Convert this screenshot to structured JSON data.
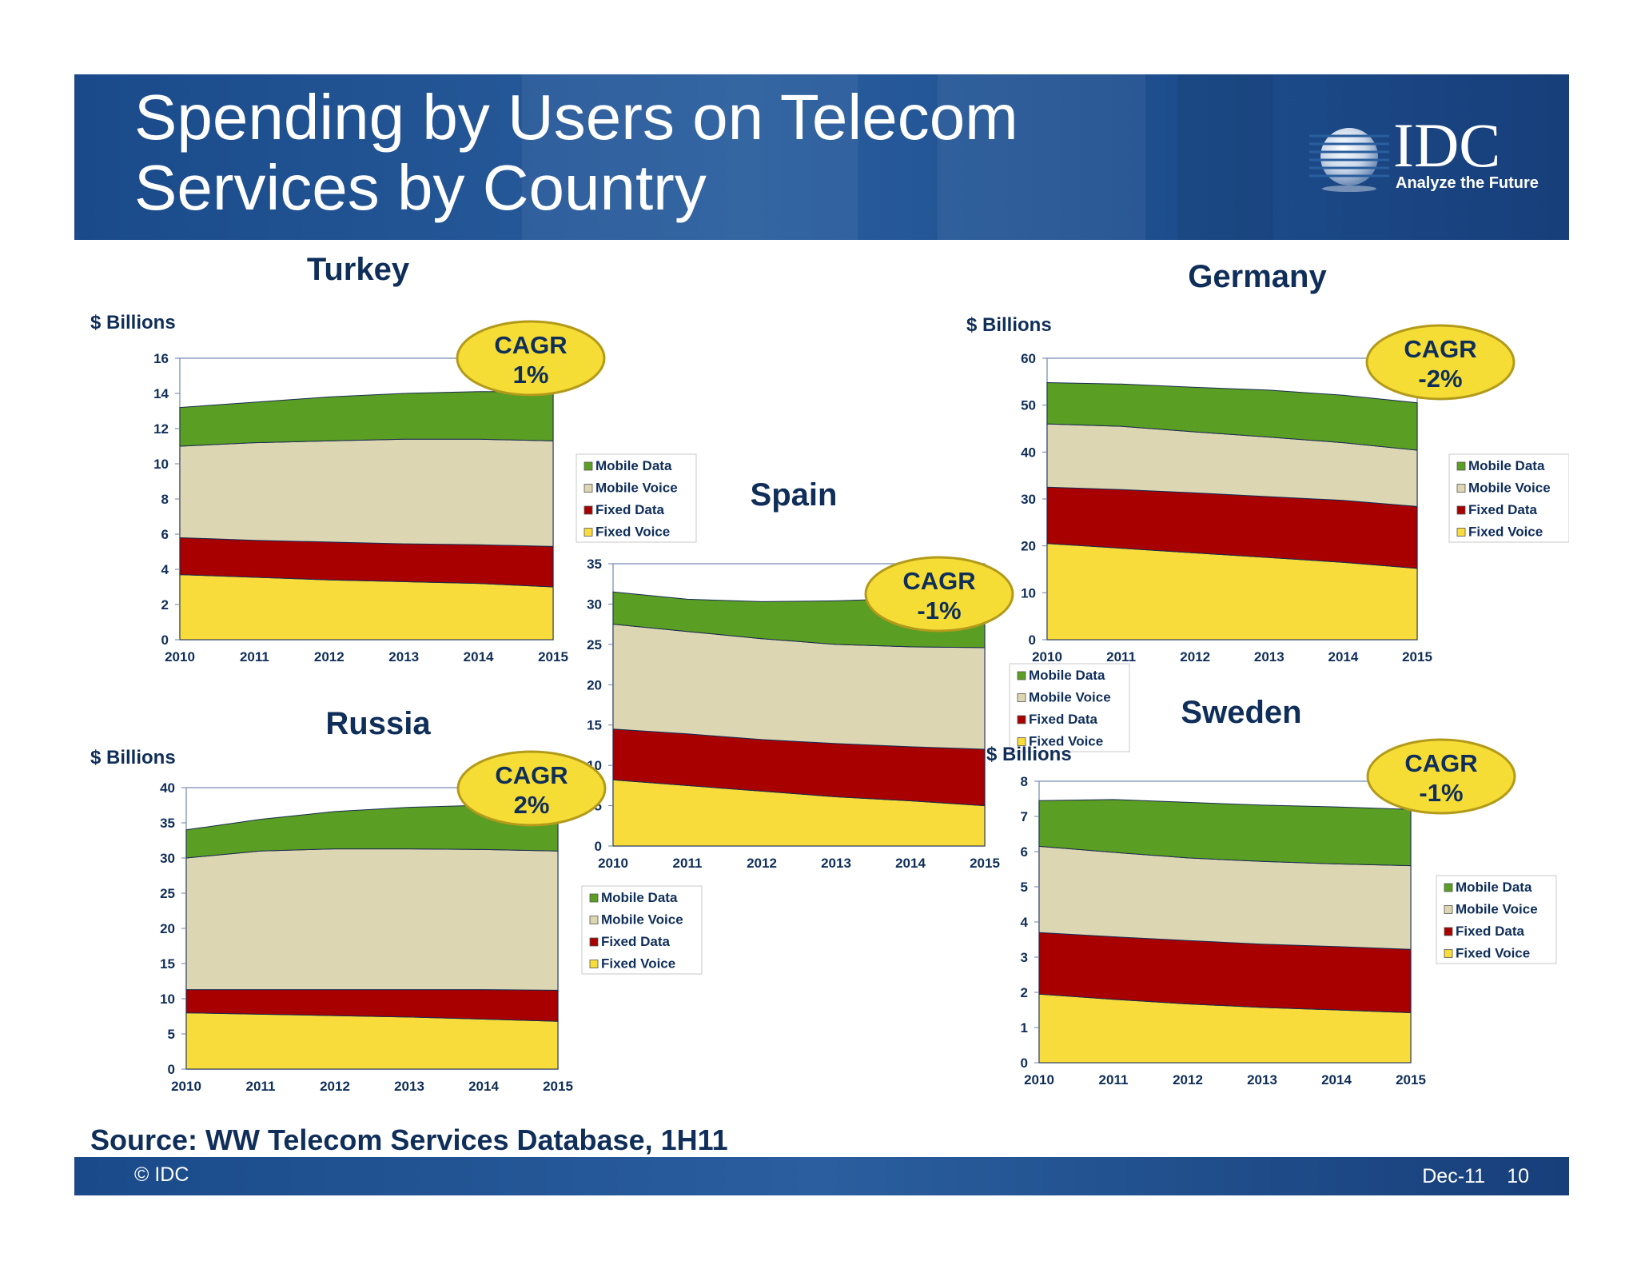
{
  "header": {
    "title_line1": "Spending by Users on Telecom",
    "title_line2": "Services by Country",
    "logo_text": "IDC",
    "logo_tagline": "Analyze the Future"
  },
  "source": "Source: WW Telecom Services Database, 1H11",
  "footer": {
    "copyright": "© IDC",
    "date": "Dec-11",
    "page": "10"
  },
  "colors": {
    "mobile_data": "#5a9e23",
    "mobile_voice": "#ddd6b2",
    "fixed_data": "#a80000",
    "fixed_voice": "#f8dc3b",
    "title_navy": "#0f2e5a",
    "cagr_badge": "#f5dd36"
  },
  "chart_data": [
    {
      "type": "area",
      "stacked": true,
      "title": "Turkey",
      "ylabel": "$ Billions",
      "cagr_label": "CAGR",
      "cagr_value": "1%",
      "x": [
        "2010",
        "2011",
        "2012",
        "2013",
        "2014",
        "2015"
      ],
      "ylim": [
        0,
        16
      ],
      "yticks": [
        "0",
        "2",
        "4",
        "6",
        "8",
        "10",
        "12",
        "14",
        "16"
      ],
      "series": [
        {
          "name": "Fixed Voice",
          "values": [
            3.7,
            3.55,
            3.4,
            3.3,
            3.2,
            3.0
          ]
        },
        {
          "name": "Fixed Data",
          "values": [
            2.1,
            2.1,
            2.15,
            2.15,
            2.2,
            2.3
          ]
        },
        {
          "name": "Mobile Voice",
          "values": [
            5.2,
            5.55,
            5.75,
            5.95,
            6.0,
            6.0
          ]
        },
        {
          "name": "Mobile Data",
          "values": [
            2.2,
            2.3,
            2.5,
            2.6,
            2.7,
            2.8
          ]
        }
      ],
      "legend": [
        "Mobile Data",
        "Mobile Voice",
        "Fixed Data",
        "Fixed Voice"
      ]
    },
    {
      "type": "area",
      "stacked": true,
      "title": "Germany",
      "ylabel": "$ Billions",
      "cagr_label": "CAGR",
      "cagr_value": "-2%",
      "x": [
        "2010",
        "2011",
        "2012",
        "2013",
        "2014",
        "2015"
      ],
      "ylim": [
        0,
        60
      ],
      "yticks": [
        "0",
        "10",
        "20",
        "30",
        "40",
        "50",
        "60"
      ],
      "series": [
        {
          "name": "Fixed Voice",
          "values": [
            20.5,
            19.5,
            18.5,
            17.5,
            16.5,
            15.2
          ]
        },
        {
          "name": "Fixed Data",
          "values": [
            12.0,
            12.5,
            12.8,
            13.0,
            13.2,
            13.2
          ]
        },
        {
          "name": "Mobile Voice",
          "values": [
            13.5,
            13.5,
            13.0,
            12.7,
            12.3,
            12.0
          ]
        },
        {
          "name": "Mobile Data",
          "values": [
            8.8,
            9.0,
            9.5,
            10.0,
            10.1,
            10.1
          ]
        }
      ],
      "legend": [
        "Mobile Data",
        "Mobile Voice",
        "Fixed Data",
        "Fixed Voice"
      ]
    },
    {
      "type": "area",
      "stacked": true,
      "title": "Spain",
      "ylabel": "",
      "cagr_label": "CAGR",
      "cagr_value": "-1%",
      "x": [
        "2010",
        "2011",
        "2012",
        "2013",
        "2014",
        "2015"
      ],
      "ylim": [
        0,
        35
      ],
      "yticks": [
        "0",
        "5",
        "10",
        "15",
        "20",
        "25",
        "30",
        "35"
      ],
      "series": [
        {
          "name": "Fixed Voice",
          "values": [
            8.2,
            7.5,
            6.8,
            6.1,
            5.6,
            5.0
          ]
        },
        {
          "name": "Fixed Data",
          "values": [
            6.3,
            6.4,
            6.4,
            6.6,
            6.7,
            7.0
          ]
        },
        {
          "name": "Mobile Voice",
          "values": [
            13.0,
            12.7,
            12.5,
            12.3,
            12.4,
            12.6
          ]
        },
        {
          "name": "Mobile Data",
          "values": [
            4.0,
            4.0,
            4.6,
            5.4,
            6.0,
            6.5
          ]
        }
      ],
      "legend": [
        "Mobile Data",
        "Mobile Voice",
        "Fixed Data",
        "Fixed Voice"
      ]
    },
    {
      "type": "area",
      "stacked": true,
      "title": "Russia",
      "ylabel": "$ Billions",
      "cagr_label": "CAGR",
      "cagr_value": "2%",
      "x": [
        "2010",
        "2011",
        "2012",
        "2013",
        "2014",
        "2015"
      ],
      "ylim": [
        0,
        40
      ],
      "yticks": [
        "0",
        "5",
        "10",
        "15",
        "20",
        "25",
        "30",
        "35",
        "40"
      ],
      "series": [
        {
          "name": "Fixed Voice",
          "values": [
            8.0,
            7.8,
            7.6,
            7.4,
            7.1,
            6.8
          ]
        },
        {
          "name": "Fixed Data",
          "values": [
            3.3,
            3.5,
            3.7,
            3.9,
            4.2,
            4.4
          ]
        },
        {
          "name": "Mobile Voice",
          "values": [
            18.7,
            19.7,
            20.0,
            20.0,
            19.9,
            19.8
          ]
        },
        {
          "name": "Mobile Data",
          "values": [
            4.0,
            4.5,
            5.3,
            5.9,
            6.3,
            6.6
          ]
        }
      ],
      "legend": [
        "Mobile Data",
        "Mobile Voice",
        "Fixed Data",
        "Fixed Voice"
      ]
    },
    {
      "type": "area",
      "stacked": true,
      "title": "Sweden",
      "ylabel": "$ Billions",
      "cagr_label": "CAGR",
      "cagr_value": "-1%",
      "x": [
        "2010",
        "2011",
        "2012",
        "2013",
        "2014",
        "2015"
      ],
      "ylim": [
        0,
        8
      ],
      "yticks": [
        "0",
        "1",
        "2",
        "3",
        "4",
        "5",
        "6",
        "7",
        "8"
      ],
      "series": [
        {
          "name": "Fixed Voice",
          "values": [
            1.95,
            1.8,
            1.67,
            1.57,
            1.5,
            1.42
          ]
        },
        {
          "name": "Fixed Data",
          "values": [
            1.75,
            1.78,
            1.8,
            1.8,
            1.8,
            1.8
          ]
        },
        {
          "name": "Mobile Voice",
          "values": [
            2.45,
            2.4,
            2.35,
            2.35,
            2.35,
            2.38
          ]
        },
        {
          "name": "Mobile Data",
          "values": [
            1.3,
            1.5,
            1.58,
            1.6,
            1.62,
            1.6
          ]
        }
      ],
      "legend": [
        "Mobile Data",
        "Mobile Voice",
        "Fixed Data",
        "Fixed Voice"
      ]
    }
  ]
}
